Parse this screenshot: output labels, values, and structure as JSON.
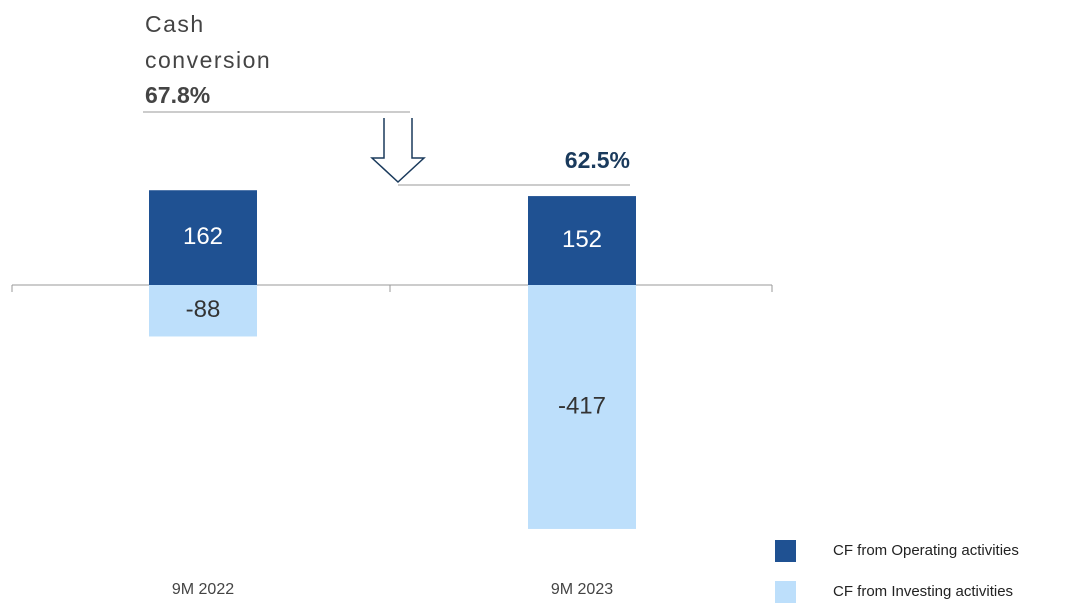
{
  "chart_data": {
    "type": "bar",
    "categories": [
      "9M 2022",
      "9M 2023"
    ],
    "series": [
      {
        "name": "CF from Operating activities",
        "color": "#1f5192",
        "values": [
          162,
          152
        ]
      },
      {
        "name": "CF from Investing activities",
        "color": "#bddffb",
        "values": [
          -88,
          -417
        ]
      }
    ],
    "annotation": {
      "label": "Cash conversion",
      "values": [
        67.8,
        62.5
      ],
      "value_labels": [
        "67.8%",
        "62.5%"
      ]
    }
  }
}
